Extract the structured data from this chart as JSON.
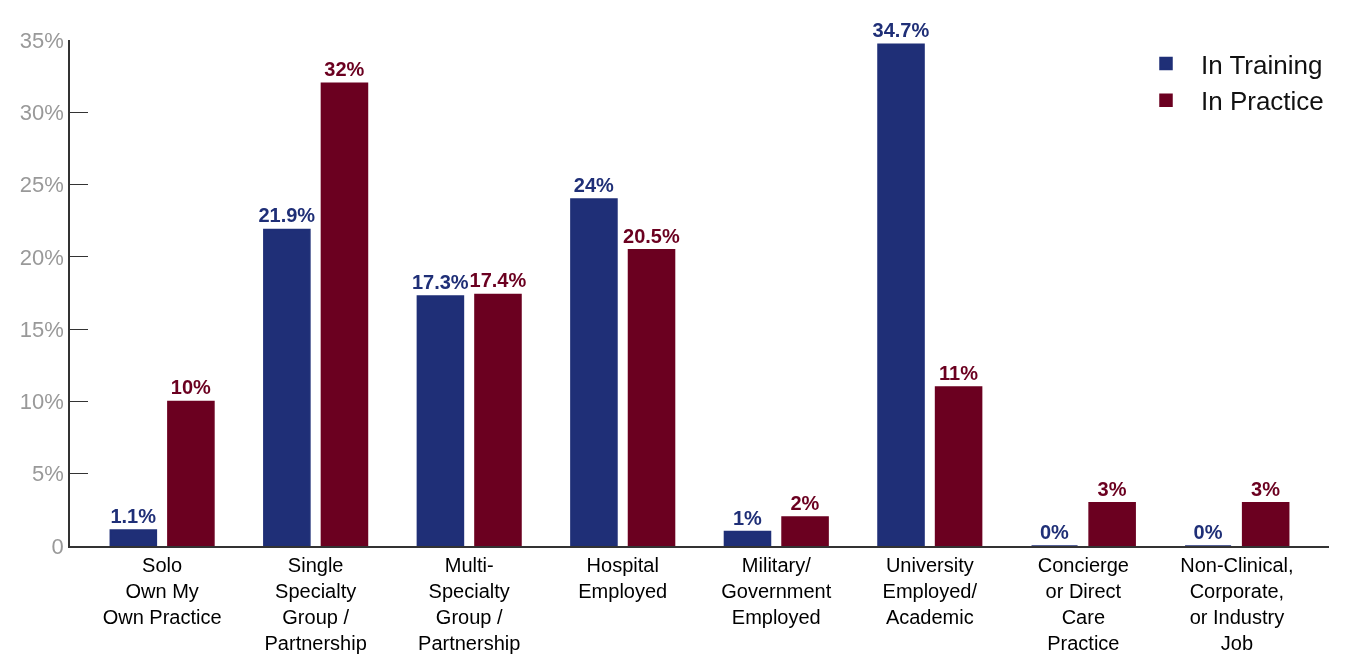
{
  "chart_data": {
    "type": "bar",
    "categories": [
      "Solo\nOwn My\nOwn Practice",
      "Single\nSpecialty\nGroup /\nPartnership",
      "Multi-\nSpecialty\nGroup /\nPartnership",
      "Hospital\nEmployed",
      "Military/\nGovernment\nEmployed",
      "University\nEmployed/\nAcademic",
      "Concierge\nor Direct\nCare\nPractice",
      "Non-Clinical,\nCorporate,\nor Industry\nJob"
    ],
    "series": [
      {
        "name": "In Training",
        "color": "#1f2f77",
        "values": [
          1.1,
          21.9,
          17.3,
          24,
          1,
          34.7,
          0,
          0
        ],
        "value_labels": [
          "1.1%",
          "21.9%",
          "17.3%",
          "24%",
          "1%",
          "34.7%",
          "0%",
          "0%"
        ]
      },
      {
        "name": "In Practice",
        "color": "#6b0020",
        "values": [
          10,
          32,
          17.4,
          20.5,
          2,
          11,
          3,
          3
        ],
        "value_labels": [
          "10%",
          "32%",
          "17.4%",
          "20.5%",
          "2%",
          "11%",
          "3%",
          "3%"
        ]
      }
    ],
    "ylim": [
      0,
      35
    ],
    "yticks": [
      0,
      {
        "value": 5,
        "label": "5%"
      },
      {
        "value": 10,
        "label": "10%"
      },
      {
        "value": 15,
        "label": "15%"
      },
      {
        "value": 20,
        "label": "20%"
      },
      {
        "value": 25,
        "label": "25%"
      },
      {
        "value": 30,
        "label": "30%"
      },
      {
        "value": 35,
        "label": "35%"
      }
    ],
    "legend": "top right"
  }
}
